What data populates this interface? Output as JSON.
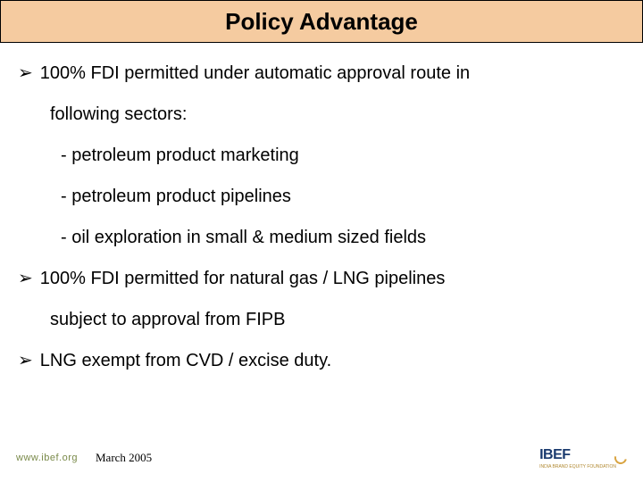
{
  "title": "Policy Advantage",
  "bullets": [
    {
      "lead": "100% FDI permitted under automatic approval route in",
      "cont": "following sectors:",
      "subs": [
        "- petroleum product marketing",
        "- petroleum product pipelines",
        "- oil exploration in small & medium sized fields"
      ]
    },
    {
      "lead": "100% FDI permitted for natural gas / LNG pipelines",
      "cont": "subject to approval from FIPB",
      "subs": []
    },
    {
      "lead": "LNG exempt from CVD / excise duty.",
      "cont": "",
      "subs": []
    }
  ],
  "footer": {
    "url": "www.ibef.org",
    "date": "March 2005",
    "logo_text": "IBEF",
    "logo_sub": "INDIA BRAND EQUITY FOUNDATION"
  },
  "colors": {
    "title_bg": "#f5cba0",
    "title_border": "#000000",
    "text": "#000000",
    "url": "#7a8a4a",
    "logo_blue": "#1a3a6e",
    "logo_gold": "#d9a441"
  }
}
